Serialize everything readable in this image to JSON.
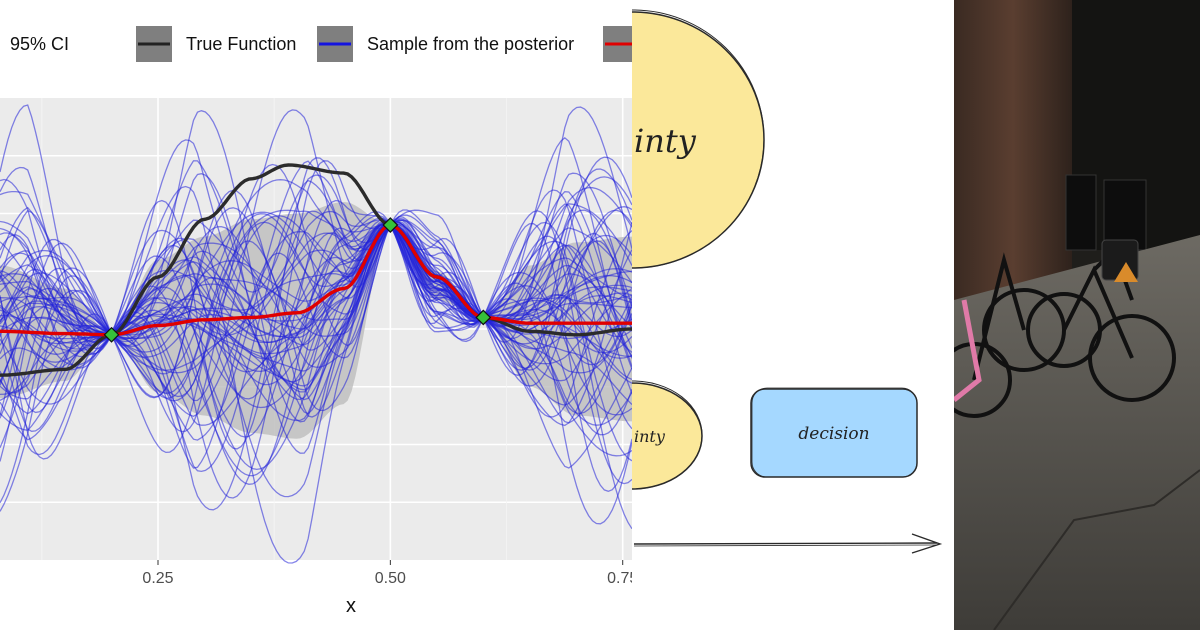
{
  "chart_data": {
    "type": "line",
    "title": "",
    "xlabel": "x",
    "ylabel": "",
    "xlim": [
      0.08,
      0.76
    ],
    "ylim": [
      -2.0,
      2.0
    ],
    "x_ticks": [
      {
        "value": 0.25,
        "label": "0.25"
      },
      {
        "value": 0.5,
        "label": "0.50"
      },
      {
        "value": 0.75,
        "label": "0.75"
      }
    ],
    "legend": [
      {
        "label": "95% CI",
        "color": "#bdbdbd"
      },
      {
        "label": "True Function",
        "color": "#222222"
      },
      {
        "label": "Sample from the posterior",
        "color": "#1414e0"
      },
      {
        "label": "",
        "color": "#e00000"
      }
    ],
    "observations": [
      {
        "x": 0.2,
        "y": -0.05
      },
      {
        "x": 0.5,
        "y": 0.9
      },
      {
        "x": 0.6,
        "y": 0.1
      }
    ],
    "true_function": {
      "x": [
        0.08,
        0.15,
        0.2,
        0.25,
        0.3,
        0.35,
        0.39,
        0.45,
        0.5,
        0.55,
        0.6,
        0.65,
        0.7,
        0.76
      ],
      "y": [
        -0.4,
        -0.35,
        -0.05,
        0.45,
        0.95,
        1.3,
        1.42,
        1.35,
        0.9,
        0.45,
        0.1,
        -0.02,
        -0.05,
        0.0
      ]
    },
    "posterior_mean": {
      "x": [
        0.08,
        0.15,
        0.2,
        0.25,
        0.3,
        0.35,
        0.4,
        0.45,
        0.5,
        0.55,
        0.6,
        0.65,
        0.7,
        0.76
      ],
      "y": [
        -0.02,
        -0.04,
        -0.05,
        0.03,
        0.08,
        0.1,
        0.14,
        0.35,
        0.9,
        0.45,
        0.1,
        0.05,
        0.05,
        0.05
      ]
    },
    "ci_95": {
      "x": [
        0.08,
        0.15,
        0.2,
        0.25,
        0.3,
        0.35,
        0.4,
        0.45,
        0.5,
        0.55,
        0.6,
        0.65,
        0.7,
        0.76
      ],
      "upper": [
        0.55,
        0.35,
        -0.05,
        0.6,
        0.8,
        0.95,
        1.0,
        1.1,
        0.9,
        0.5,
        0.1,
        0.55,
        0.75,
        0.8
      ],
      "lower": [
        -0.6,
        -0.45,
        -0.05,
        -0.55,
        -0.75,
        -0.9,
        -0.95,
        -0.65,
        0.9,
        0.25,
        0.1,
        -0.5,
        -0.75,
        -0.8
      ]
    },
    "posterior_sample_count": 60,
    "posterior_sample_seed": 7
  },
  "sketch": {
    "top_node_label": "inty",
    "middle_node_label": "inty",
    "decision_label": "decision",
    "colors": {
      "yellow": "#fbe89a",
      "blue": "#a5d8ff"
    }
  },
  "photo": {
    "subject": "bicycles"
  }
}
